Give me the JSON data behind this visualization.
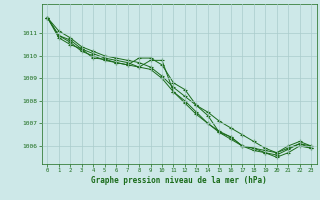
{
  "bg_color": "#cde8e8",
  "grid_color": "#aacccc",
  "line_color": "#1a6b1a",
  "marker_color": "#1a6b1a",
  "xlabel": "Graphe pression niveau de la mer (hPa)",
  "xlabel_color": "#1a6b1a",
  "tick_color": "#1a6b1a",
  "ylim": [
    1005.2,
    1012.3
  ],
  "xlim": [
    -0.5,
    23.5
  ],
  "yticks": [
    1006,
    1007,
    1008,
    1009,
    1010,
    1011
  ],
  "xticks": [
    0,
    1,
    2,
    3,
    4,
    5,
    6,
    7,
    8,
    9,
    10,
    11,
    12,
    13,
    14,
    15,
    16,
    17,
    18,
    19,
    20,
    21,
    22,
    23
  ],
  "series": [
    [
      1011.7,
      1011.1,
      1010.8,
      1010.4,
      1010.2,
      1010.0,
      1009.9,
      1009.8,
      1009.7,
      1009.5,
      1009.1,
      1008.6,
      1008.2,
      1007.8,
      1007.5,
      1007.1,
      1006.8,
      1006.5,
      1006.2,
      1005.9,
      1005.7,
      1005.9,
      1006.1,
      1006.0
    ],
    [
      1011.7,
      1010.9,
      1010.7,
      1010.3,
      1010.1,
      1009.9,
      1009.8,
      1009.7,
      1009.5,
      1009.4,
      1009.0,
      1008.4,
      1007.9,
      1007.4,
      1007.0,
      1006.6,
      1006.4,
      1006.0,
      1005.8,
      1005.7,
      1005.5,
      1005.7,
      1006.0,
      1005.9
    ],
    [
      1011.7,
      1010.8,
      1010.5,
      1010.3,
      1009.9,
      1009.85,
      1009.7,
      1009.6,
      1009.9,
      1009.9,
      1009.6,
      1008.8,
      1008.5,
      1007.8,
      1007.35,
      1006.6,
      1006.3,
      1006.0,
      1005.9,
      1005.7,
      1005.6,
      1005.85,
      1006.1,
      1005.9
    ],
    [
      1011.7,
      1010.9,
      1010.6,
      1010.2,
      1010.0,
      1009.8,
      1009.7,
      1009.6,
      1009.5,
      1009.8,
      1009.8,
      1008.4,
      1008.0,
      1007.5,
      1007.0,
      1006.65,
      1006.4,
      1006.0,
      1005.9,
      1005.8,
      1005.7,
      1006.0,
      1006.2,
      1006.0
    ]
  ]
}
